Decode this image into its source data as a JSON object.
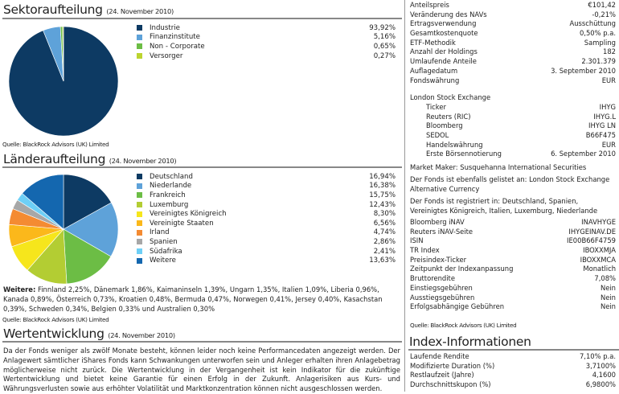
{
  "sektor": {
    "title": "Sektoraufteilung",
    "date": "(24. November 2010)",
    "source": "Quelle: BlackRock Advisors (UK) Limited"
  },
  "laender": {
    "title": "Länderaufteilung",
    "date": "(24. November 2010)",
    "source": "Quelle: BlackRock Advisors (UK) Limited",
    "weitere_label": "Weitere:",
    "weitere_text": " Finnland 2,25%, Dänemark 1,86%, Kaimaninseln 1,39%, Ungarn 1,35%, Italien 1,09%, Liberia 0,96%, Kanada 0,89%, Österreich 0,73%, Kroatien 0,48%, Bermuda 0,47%, Norwegen 0,41%, Jersey 0,40%, Kasachstan 0,39%, Schweden 0,34%, Belgien 0,33% und Australien 0,30%"
  },
  "chart_data": [
    {
      "type": "pie",
      "title": "Sektoraufteilung",
      "categories": [
        "Industrie",
        "Finanzinstitute",
        "Non - Corporate",
        "Versorger"
      ],
      "values": [
        93.92,
        5.16,
        0.65,
        0.27
      ],
      "labels": [
        "93,92%",
        "5,16%",
        "0,65%",
        "0,27%"
      ],
      "colors": [
        "#0d3a63",
        "#5ea2d9",
        "#6cbd45",
        "#bcd42f"
      ],
      "legend": "right"
    },
    {
      "type": "pie",
      "title": "Länderaufteilung",
      "categories": [
        "Deutschland",
        "Niederlande",
        "Frankreich",
        "Luxemburg",
        "Vereinigtes Königreich",
        "Vereinigte Staaten",
        "Irland",
        "Spanien",
        "Südafrika",
        "Weitere"
      ],
      "values": [
        16.94,
        16.38,
        15.75,
        12.43,
        8.3,
        6.56,
        4.74,
        2.86,
        2.41,
        13.63
      ],
      "labels": [
        "16,94%",
        "16,38%",
        "15,75%",
        "12,43%",
        "8,30%",
        "6,56%",
        "4,74%",
        "2,86%",
        "2,41%",
        "13,63%"
      ],
      "colors": [
        "#0d3a63",
        "#5ea2d9",
        "#6cbd45",
        "#b3cd33",
        "#f6e61c",
        "#fbb81b",
        "#f48b32",
        "#a7a7a7",
        "#6dcff6",
        "#1467af"
      ],
      "legend": "right"
    }
  ],
  "wert": {
    "title": "Wertentwicklung",
    "date": "(24. November 2010)",
    "text": "Da der Fonds weniger als zwölf Monate besteht, können leider noch keine Performancedaten angezeigt werden. Der Anlagewert sämtlicher iShares Fonds kann Schwankungen unterworfen sein und Anleger erhalten ihren Anlagebetrag möglicherweise nicht zurück. Die Wertentwicklung in der Vergangenheit ist kein Indikator für die zukünftige Wertentwicklung und bietet keine Garantie für einen Erfolg in der Zukunft. Anlagerisiken aus Kurs- und Währungsverlusten sowie aus erhöhter Volatilität und Marktkonzentration können nicht ausgeschlossen werden."
  },
  "fund": {
    "rows1": [
      [
        "Anteilspreis",
        "€101,42"
      ],
      [
        "Veränderung des NAVs",
        "-0,21%"
      ],
      [
        "Ertragsverwendung",
        "Ausschüttung"
      ],
      [
        "Gesamtkostenquote",
        "0,50% p.a."
      ],
      [
        "ETF-Methodik",
        "Sampling"
      ],
      [
        "Anzahl der Holdings",
        "182"
      ],
      [
        "Umlaufende Anteile",
        "2.301.379"
      ],
      [
        "Auflagedatum",
        "3. September 2010"
      ],
      [
        "Fondswährung",
        "EUR"
      ]
    ],
    "exchange": "London Stock Exchange",
    "rows2": [
      [
        "Ticker",
        "IHYG"
      ],
      [
        "Reuters (RIC)",
        "IHYG.L"
      ],
      [
        "Bloomberg",
        "IHYG LN"
      ],
      [
        "SEDOL",
        "B66F475"
      ],
      [
        "Handelswährung",
        "EUR"
      ],
      [
        "Erste Börsennotierung",
        "6. September 2010"
      ]
    ],
    "market_maker": "Market Maker: Susquehanna International Securities",
    "also_listed": "Der Fonds ist ebenfalls gelistet an: London Stock Exchange Alternative Currency",
    "registered": "Der Fonds ist registriert in: Deutschland, Spanien, Vereinigtes Königreich, Italien, Luxemburg, Niederlande",
    "rows3": [
      [
        "Bloomberg iNAV",
        "INAVHYGE"
      ],
      [
        "Reuters iNAV-Seite",
        "IHYGEINAV.DE"
      ],
      [
        "ISIN",
        "IE00B66F4759"
      ],
      [
        "TR Index",
        "IBOXXMJA"
      ],
      [
        "Preisindex-Ticker",
        "IBOXXMCA"
      ],
      [
        "Zeitpunkt der Indexanpassung",
        "Monatlich"
      ],
      [
        "Bruttorendite",
        "7,08%"
      ],
      [
        "Einstiegsgebühren",
        "Nein"
      ],
      [
        "Ausstiegsgebühren",
        "Nein"
      ],
      [
        "Erfolgsabhängige Gebühren",
        "Nein"
      ]
    ],
    "source": "Quelle: BlackRock Advisors (UK) Limited"
  },
  "index": {
    "title": "Index-Informationen",
    "rows": [
      [
        "Laufende Rendite",
        "7,10% p.a."
      ],
      [
        "Modifizierte Duration (%)",
        "3,7100%"
      ],
      [
        "Restlaufzeit (Jahre)",
        "4,1600"
      ],
      [
        "Durchschnittskupon (%)",
        "6,9800%"
      ]
    ]
  }
}
